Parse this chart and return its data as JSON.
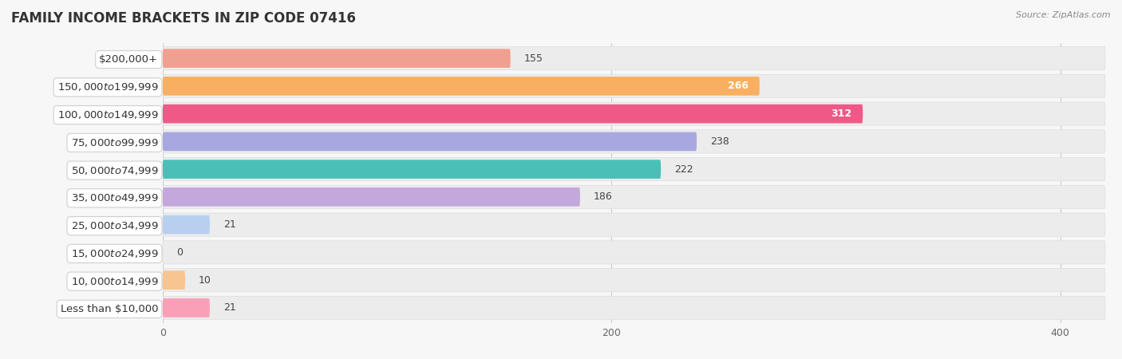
{
  "title": "FAMILY INCOME BRACKETS IN ZIP CODE 07416",
  "source": "Source: ZipAtlas.com",
  "categories": [
    "Less than $10,000",
    "$10,000 to $14,999",
    "$15,000 to $24,999",
    "$25,000 to $34,999",
    "$35,000 to $49,999",
    "$50,000 to $74,999",
    "$75,000 to $99,999",
    "$100,000 to $149,999",
    "$150,000 to $199,999",
    "$200,000+"
  ],
  "values": [
    21,
    10,
    0,
    21,
    186,
    222,
    238,
    312,
    266,
    155
  ],
  "bar_colors": [
    "#f9a0b8",
    "#f8c490",
    "#f0a0a0",
    "#b8cff0",
    "#c4a8dc",
    "#48c0b8",
    "#a8a8e0",
    "#f05888",
    "#f8b060",
    "#f0a090"
  ],
  "label_colors": [
    "#444444",
    "#444444",
    "#444444",
    "#444444",
    "#444444",
    "#444444",
    "#444444",
    "#ffffff",
    "#ffffff",
    "#444444"
  ],
  "xlim": [
    0,
    420
  ],
  "xticks": [
    0,
    200,
    400
  ],
  "background_color": "#f7f7f7",
  "row_bg_color": "#ececec",
  "title_fontsize": 12,
  "label_fontsize": 9.5,
  "value_fontsize": 9
}
